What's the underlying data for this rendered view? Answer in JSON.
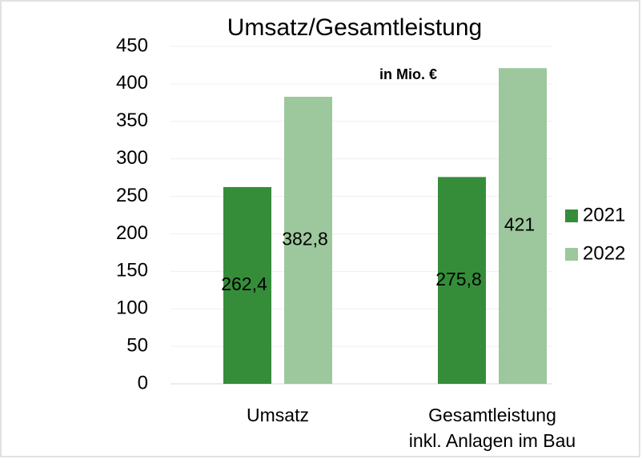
{
  "chart_data": {
    "type": "bar",
    "title": "Umsatz/Gesamtleistung",
    "annotation": "in Mio. €",
    "categories": [
      "Umsatz",
      "Gesamtleistung\ninkl. Anlagen im Bau"
    ],
    "series": [
      {
        "name": "2021",
        "color": "#358d3a",
        "values": [
          262.4,
          275.8
        ],
        "value_labels": [
          "262,4",
          "275,8"
        ]
      },
      {
        "name": "2022",
        "color": "#9dc79d",
        "values": [
          382.8,
          421
        ],
        "value_labels": [
          "382,8",
          "421"
        ]
      }
    ],
    "ylim": [
      0,
      450
    ],
    "yticks": [
      0,
      50,
      100,
      150,
      200,
      250,
      300,
      350,
      400,
      450
    ],
    "grid": true,
    "legend": "right"
  }
}
